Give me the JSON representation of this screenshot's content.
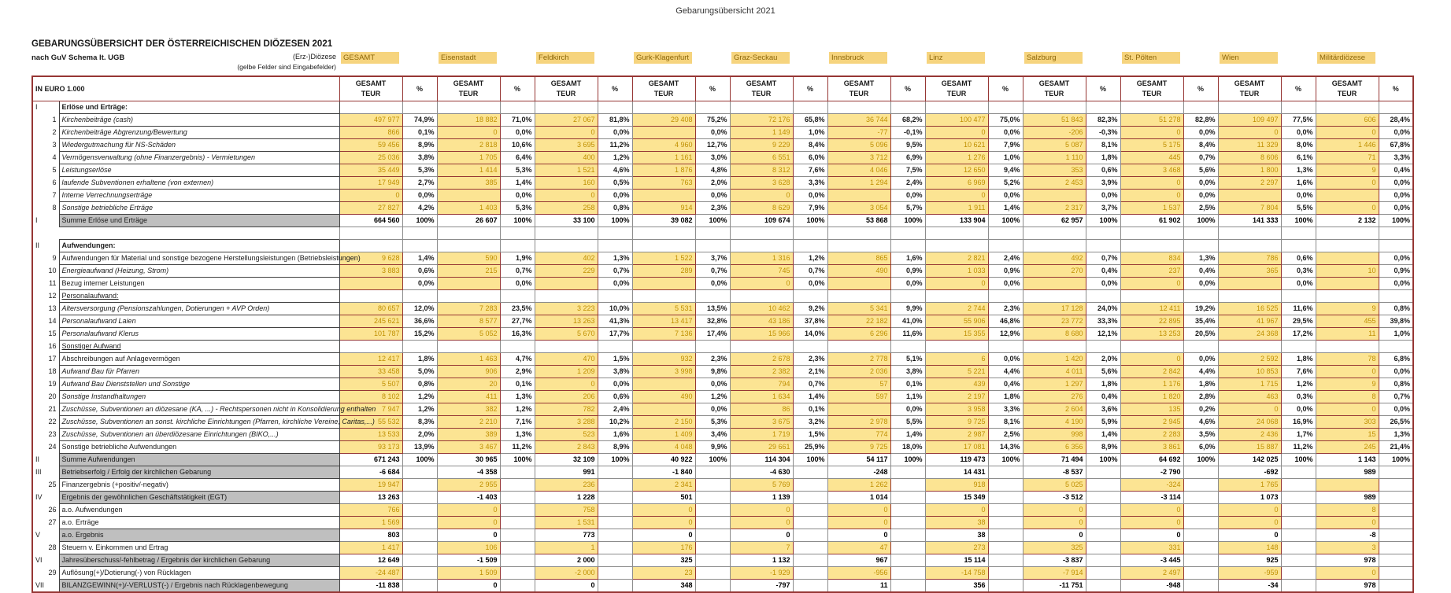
{
  "page": {
    "top_title": "Gebarungsübersicht 2021",
    "heading": "GEBARUNGSÜBERSICHT DER ÖSTERREICHISCHEN DIÖZESEN 2021",
    "subheading": "nach GuV Schema lt. UGB",
    "diocese_label": "(Erz-)Diözese",
    "input_note": "(gelbe Felder sind Eingabefelder)",
    "unit_label": "IN EURO 1.000",
    "col_value_line1": "GESAMT",
    "col_value_line2": "TEUR",
    "col_pct_label": "%"
  },
  "colors": {
    "input_cell": "#FCE493",
    "diocese_box": "#F6D47E",
    "input_text": "#BF8F00",
    "frame": "#963634",
    "sum_label_bg": "#BFBFBF"
  },
  "dioceses": [
    "GESAMT",
    "Eisenstadt",
    "Feldkirch",
    "Gurk-Klagenfurt",
    "Graz-Seckau",
    "Innsbruck",
    "Linz",
    "Salzburg",
    "St. Pölten",
    "Wien",
    "Militärdiözese"
  ],
  "rows": [
    {
      "type": "section",
      "roman": "I",
      "num": "",
      "label": "Erlöse und Erträge:"
    },
    {
      "type": "data",
      "num": "1",
      "italic": true,
      "label": "Kirchenbeiträge (cash)",
      "v": [
        "497 977",
        "18 882",
        "27 067",
        "29 408",
        "72 176",
        "36 744",
        "100 477",
        "51 843",
        "51 278",
        "109 497",
        "606"
      ],
      "p": [
        "74,9%",
        "71,0%",
        "81,8%",
        "75,2%",
        "65,8%",
        "68,2%",
        "75,0%",
        "82,3%",
        "82,8%",
        "77,5%",
        "28,4%"
      ]
    },
    {
      "type": "data",
      "num": "2",
      "italic": true,
      "label": "Kirchenbeiträge Abgrenzung/Bewertung",
      "v": [
        "866",
        "0",
        "0",
        "",
        "1 149",
        "-77",
        "0",
        "-206",
        "0",
        "0",
        "0"
      ],
      "p": [
        "0,1%",
        "0,0%",
        "0,0%",
        "0,0%",
        "1,0%",
        "-0,1%",
        "0,0%",
        "-0,3%",
        "0,0%",
        "0,0%",
        "0,0%"
      ]
    },
    {
      "type": "data",
      "num": "3",
      "italic": true,
      "label": "Wiedergutmachung für NS-Schäden",
      "v": [
        "59 456",
        "2 818",
        "3 695",
        "4 960",
        "9 229",
        "5 096",
        "10 621",
        "5 087",
        "5 175",
        "11 329",
        "1 446"
      ],
      "p": [
        "8,9%",
        "10,6%",
        "11,2%",
        "12,7%",
        "8,4%",
        "9,5%",
        "7,9%",
        "8,1%",
        "8,4%",
        "8,0%",
        "67,8%"
      ]
    },
    {
      "type": "data",
      "num": "4",
      "italic": true,
      "label": "Vermögensverwaltung (ohne Finanzergebnis) - Vermietungen",
      "v": [
        "25 036",
        "1 705",
        "400",
        "1 161",
        "6 551",
        "3 712",
        "1 276",
        "1 110",
        "445",
        "8 606",
        "71"
      ],
      "p": [
        "3,8%",
        "6,4%",
        "1,2%",
        "3,0%",
        "6,0%",
        "6,9%",
        "1,0%",
        "1,8%",
        "0,7%",
        "6,1%",
        "3,3%"
      ]
    },
    {
      "type": "data",
      "num": "5",
      "italic": true,
      "label": "Leistungserlöse",
      "v": [
        "35 449",
        "1 414",
        "1 521",
        "1 876",
        "8 312",
        "4 046",
        "12 650",
        "353",
        "3 468",
        "1 800",
        "9"
      ],
      "p": [
        "5,3%",
        "5,3%",
        "4,6%",
        "4,8%",
        "7,6%",
        "7,5%",
        "9,4%",
        "0,6%",
        "5,6%",
        "1,3%",
        "0,4%"
      ]
    },
    {
      "type": "data",
      "num": "6",
      "italic": true,
      "label": "laufende Subventionen erhaltene (von externen)",
      "v": [
        "17 949",
        "385",
        "160",
        "763",
        "3 628",
        "1 294",
        "6 969",
        "2 453",
        "0",
        "2 297",
        "0"
      ],
      "p": [
        "2,7%",
        "1,4%",
        "0,5%",
        "2,0%",
        "3,3%",
        "2,4%",
        "5,2%",
        "3,9%",
        "0,0%",
        "1,6%",
        "0,0%"
      ]
    },
    {
      "type": "data",
      "num": "7",
      "italic": true,
      "label": "Interne Verrechnungserträge",
      "v": [
        "0",
        "",
        "0",
        "",
        "0",
        "",
        "0",
        "",
        "0",
        "",
        ""
      ],
      "p": [
        "0,0%",
        "0,0%",
        "0,0%",
        "0,0%",
        "0,0%",
        "0,0%",
        "0,0%",
        "0,0%",
        "0,0%",
        "0,0%",
        "0,0%"
      ]
    },
    {
      "type": "data",
      "num": "8",
      "italic": true,
      "label": "Sonstige betriebliche Erträge",
      "v": [
        "27 827",
        "1 403",
        "258",
        "914",
        "8 629",
        "3 054",
        "1 911",
        "2 317",
        "1 537",
        "7 804",
        "0"
      ],
      "p": [
        "4,2%",
        "5,3%",
        "0,8%",
        "2,3%",
        "7,9%",
        "5,7%",
        "1,4%",
        "3,7%",
        "2,5%",
        "5,5%",
        "0,0%"
      ]
    },
    {
      "type": "sum",
      "roman": "I",
      "label": "Summe Erlöse und Erträge",
      "v": [
        "664 560",
        "26 607",
        "33 100",
        "39 082",
        "109 674",
        "53 868",
        "133 904",
        "62 957",
        "61 902",
        "141 333",
        "2 132"
      ],
      "p": [
        "100%",
        "100%",
        "100%",
        "100%",
        "100%",
        "100%",
        "100%",
        "100%",
        "100%",
        "100%",
        "100%"
      ]
    },
    {
      "type": "spacer"
    },
    {
      "type": "section",
      "roman": "II",
      "num": "",
      "label": "Aufwendungen:"
    },
    {
      "type": "data",
      "num": "9",
      "italic": false,
      "label": "Aufwendungen für Material und sonstige bezogene Herstellungsleistungen (Betriebsleistungen)",
      "v": [
        "9 628",
        "590",
        "402",
        "1 522",
        "1 316",
        "865",
        "2 821",
        "492",
        "834",
        "786",
        ""
      ],
      "p": [
        "1,4%",
        "1,9%",
        "1,3%",
        "3,7%",
        "1,2%",
        "1,6%",
        "2,4%",
        "0,7%",
        "1,3%",
        "0,6%",
        "0,0%"
      ]
    },
    {
      "type": "data",
      "num": "10",
      "italic": true,
      "label": "Energieaufwand (Heizung, Strom)",
      "v": [
        "3 883",
        "215",
        "229",
        "289",
        "745",
        "490",
        "1 033",
        "270",
        "237",
        "365",
        "10"
      ],
      "p": [
        "0,6%",
        "0,7%",
        "0,7%",
        "0,7%",
        "0,7%",
        "0,9%",
        "0,9%",
        "0,4%",
        "0,4%",
        "0,3%",
        "0,9%"
      ]
    },
    {
      "type": "data",
      "num": "11",
      "italic": false,
      "label": "Bezug interner Leistungen",
      "v": [
        "",
        "",
        "",
        "",
        "0",
        "",
        "0",
        "",
        "0",
        "",
        ""
      ],
      "p": [
        "0,0%",
        "0,0%",
        "0,0%",
        "0,0%",
        "0,0%",
        "0,0%",
        "0,0%",
        "0,0%",
        "0,0%",
        "0,0%",
        "0,0%"
      ]
    },
    {
      "type": "subheader",
      "num": "12",
      "label": "Personalaufwand:"
    },
    {
      "type": "data",
      "num": "13",
      "italic": true,
      "label": "Altersversorgung (Pensionszahlungen, Dotierungen + AVP Orden)",
      "v": [
        "80 657",
        "7 283",
        "3 223",
        "5 531",
        "10 462",
        "5 341",
        "2 744",
        "17 128",
        "12 411",
        "16 525",
        "9"
      ],
      "p": [
        "12,0%",
        "23,5%",
        "10,0%",
        "13,5%",
        "9,2%",
        "9,9%",
        "2,3%",
        "24,0%",
        "19,2%",
        "11,6%",
        "0,8%"
      ]
    },
    {
      "type": "data",
      "num": "14",
      "italic": true,
      "label": "Personalaufwand Laien",
      "v": [
        "245 621",
        "8 577",
        "13 263",
        "13 417",
        "43 186",
        "22 182",
        "55 906",
        "23 772",
        "22 895",
        "41 967",
        "455"
      ],
      "p": [
        "36,6%",
        "27,7%",
        "41,3%",
        "32,8%",
        "37,8%",
        "41,0%",
        "46,8%",
        "33,3%",
        "35,4%",
        "29,5%",
        "39,8%"
      ]
    },
    {
      "type": "data",
      "num": "15",
      "italic": true,
      "label": "Personalaufwand Klerus",
      "v": [
        "101 787",
        "5 052",
        "5 670",
        "7 136",
        "15 966",
        "6 296",
        "15 355",
        "8 680",
        "13 253",
        "24 368",
        "11"
      ],
      "p": [
        "15,2%",
        "16,3%",
        "17,7%",
        "17,4%",
        "14,0%",
        "11,6%",
        "12,9%",
        "12,1%",
        "20,5%",
        "17,2%",
        "1,0%"
      ]
    },
    {
      "type": "subheader",
      "num": "16",
      "label": "Sonstiger Aufwand"
    },
    {
      "type": "data",
      "num": "17",
      "italic": false,
      "label": "Abschreibungen auf Anlagevermögen",
      "v": [
        "12 417",
        "1 463",
        "470",
        "932",
        "2 678",
        "2 778",
        "6",
        "1 420",
        "0",
        "2 592",
        "78"
      ],
      "p": [
        "1,8%",
        "4,7%",
        "1,5%",
        "2,3%",
        "2,3%",
        "5,1%",
        "0,0%",
        "2,0%",
        "0,0%",
        "1,8%",
        "6,8%"
      ]
    },
    {
      "type": "data",
      "num": "18",
      "italic": true,
      "label": "Aufwand Bau für Pfarren",
      "v": [
        "33 458",
        "906",
        "1 209",
        "3 998",
        "2 382",
        "2 036",
        "5 221",
        "4 011",
        "2 842",
        "10 853",
        "0"
      ],
      "p": [
        "5,0%",
        "2,9%",
        "3,8%",
        "9,8%",
        "2,1%",
        "3,8%",
        "4,4%",
        "5,6%",
        "4,4%",
        "7,6%",
        "0,0%"
      ]
    },
    {
      "type": "data",
      "num": "19",
      "italic": true,
      "label": "Aufwand Bau Dienststellen und Sonstige",
      "v": [
        "5 507",
        "20",
        "0",
        "",
        "794",
        "57",
        "439",
        "1 297",
        "1 176",
        "1 715",
        "9"
      ],
      "p": [
        "0,8%",
        "0,1%",
        "0,0%",
        "0,0%",
        "0,7%",
        "0,1%",
        "0,4%",
        "1,8%",
        "1,8%",
        "1,2%",
        "0,8%"
      ]
    },
    {
      "type": "data",
      "num": "20",
      "italic": true,
      "label": "Sonstige Instandhaltungen",
      "v": [
        "8 102",
        "411",
        "206",
        "490",
        "1 634",
        "597",
        "2 197",
        "276",
        "1 820",
        "463",
        "8"
      ],
      "p": [
        "1,2%",
        "1,3%",
        "0,6%",
        "1,2%",
        "1,4%",
        "1,1%",
        "1,8%",
        "0,4%",
        "2,8%",
        "0,3%",
        "0,7%"
      ]
    },
    {
      "type": "data",
      "num": "21",
      "italic": true,
      "label": "Zuschüsse, Subventionen an diözesane (KA, ...) - Rechtspersonen nicht in Konsolidierung enthalten",
      "v": [
        "7 947",
        "382",
        "782",
        "",
        "86",
        "",
        "3 958",
        "2 604",
        "135",
        "0",
        "0"
      ],
      "p": [
        "1,2%",
        "1,2%",
        "2,4%",
        "0,0%",
        "0,1%",
        "0,0%",
        "3,3%",
        "3,6%",
        "0,2%",
        "0,0%",
        "0,0%"
      ]
    },
    {
      "type": "data",
      "num": "22",
      "italic": true,
      "label": "Zuschüsse, Subventionen an sonst. kirchliche Einrichtungen (Pfarren, kirchliche Vereine, Caritas,...)",
      "v": [
        "55 532",
        "2 210",
        "3 288",
        "2 150",
        "3 675",
        "2 978",
        "9 725",
        "4 190",
        "2 945",
        "24 068",
        "303"
      ],
      "p": [
        "8,3%",
        "7,1%",
        "10,2%",
        "5,3%",
        "3,2%",
        "5,5%",
        "8,1%",
        "5,9%",
        "4,6%",
        "16,9%",
        "26,5%"
      ]
    },
    {
      "type": "data",
      "num": "23",
      "italic": true,
      "label": "Zuschüsse, Subventionen an überdiözesane Einrichtungen (BIKO,...)",
      "v": [
        "13 533",
        "389",
        "523",
        "1 409",
        "1 719",
        "774",
        "2 987",
        "998",
        "2 283",
        "2 436",
        "15"
      ],
      "p": [
        "2,0%",
        "1,3%",
        "1,6%",
        "3,4%",
        "1,5%",
        "1,4%",
        "2,5%",
        "1,4%",
        "3,5%",
        "1,7%",
        "1,3%"
      ]
    },
    {
      "type": "data",
      "num": "24",
      "italic": false,
      "label": "Sonstige betriebliche Aufwendungen",
      "v": [
        "93 173",
        "3 467",
        "2 843",
        "4 048",
        "29 661",
        "9 725",
        "17 081",
        "6 356",
        "3 861",
        "15 887",
        "245"
      ],
      "p": [
        "13,9%",
        "11,2%",
        "8,9%",
        "9,9%",
        "25,9%",
        "18,0%",
        "14,3%",
        "8,9%",
        "6,0%",
        "11,2%",
        "21,4%"
      ]
    },
    {
      "type": "sum",
      "roman": "II",
      "label": "Summe Aufwendungen",
      "v": [
        "671 243",
        "30 965",
        "32 109",
        "40 922",
        "114 304",
        "54 117",
        "119 473",
        "71 494",
        "64 692",
        "142 025",
        "1 143"
      ],
      "p": [
        "100%",
        "100%",
        "100%",
        "100%",
        "100%",
        "100%",
        "100%",
        "100%",
        "100%",
        "100%",
        "100%"
      ]
    },
    {
      "type": "result",
      "roman": "III",
      "label": "Betriebserfolg / Erfolg der kirchlichen Gebarung",
      "v": [
        "-6 684",
        "-4 358",
        "991",
        "-1 840",
        "-4 630",
        "-248",
        "14 431",
        "-8 537",
        "-2 790",
        "-692",
        "989"
      ]
    },
    {
      "type": "input",
      "num": "25",
      "label": "Finanzergebnis (+positiv/-negativ)",
      "v": [
        "19 947",
        "2 955",
        "236",
        "2 341",
        "5 769",
        "1 262",
        "918",
        "5 025",
        "-324",
        "1 765",
        ""
      ]
    },
    {
      "type": "result",
      "roman": "IV",
      "label": "Ergebnis der gewöhnlichen Geschäftstätigkeit (EGT)",
      "v": [
        "13 263",
        "-1 403",
        "1 228",
        "501",
        "1 139",
        "1 014",
        "15 349",
        "-3 512",
        "-3 114",
        "1 073",
        "989"
      ]
    },
    {
      "type": "input",
      "num": "26",
      "label": "a.o. Aufwendungen",
      "v": [
        "766",
        "0",
        "758",
        "0",
        "0",
        "0",
        "0",
        "0",
        "0",
        "0",
        "8"
      ]
    },
    {
      "type": "input",
      "num": "27",
      "label": "a.o. Erträge",
      "v": [
        "1 569",
        "0",
        "1 531",
        "0",
        "0",
        "0",
        "38",
        "0",
        "0",
        "0",
        "0"
      ]
    },
    {
      "type": "result",
      "roman": "V",
      "label": "a.o. Ergebnis",
      "v": [
        "803",
        "0",
        "773",
        "0",
        "0",
        "0",
        "38",
        "0",
        "0",
        "0",
        "-8"
      ]
    },
    {
      "type": "input",
      "num": "28",
      "label": "Steuern v. Einkommen und Ertrag",
      "v": [
        "1 417",
        "106",
        "1",
        "176",
        "7",
        "47",
        "273",
        "325",
        "331",
        "148",
        "3"
      ]
    },
    {
      "type": "result",
      "roman": "VI",
      "label": "Jahresüberschuss/-fehlbetrag / Ergebnis der kirchlichen Gebarung",
      "v": [
        "12 649",
        "-1 509",
        "2 000",
        "325",
        "1 132",
        "967",
        "15 114",
        "-3 837",
        "-3 445",
        "925",
        "978"
      ]
    },
    {
      "type": "input",
      "num": "29",
      "label": "Auflösung(+)/Dotierung(-) von Rücklagen",
      "v": [
        "-24 487",
        "1 509",
        "-2 000",
        "23",
        "-1 929",
        "-956",
        "-14 758",
        "-7 914",
        "2 497",
        "-959",
        "0"
      ]
    },
    {
      "type": "result",
      "roman": "VII",
      "label": "BILANZGEWINN(+)/-VERLUST(-) / Ergebnis nach Rücklagenbewegung",
      "v": [
        "-11 838",
        "0",
        "0",
        "348",
        "-797",
        "11",
        "356",
        "-11 751",
        "-948",
        "-34",
        "978"
      ]
    }
  ]
}
